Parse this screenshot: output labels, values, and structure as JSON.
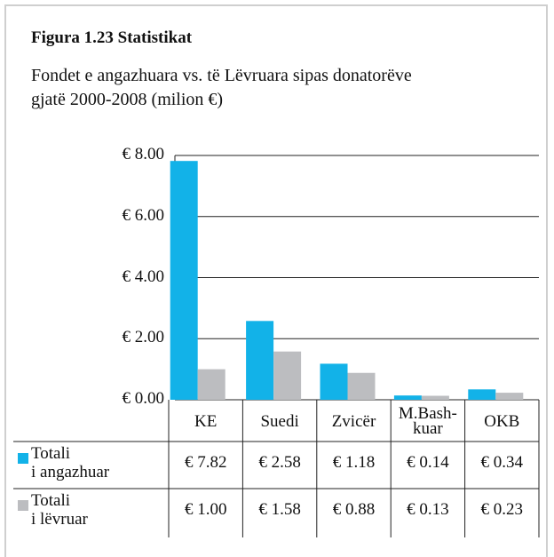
{
  "chart_data": {
    "type": "bar",
    "title": "Figura 1.23  Statistikat",
    "subtitle": "Fondet e angazhuara vs. të Lëvruara sipas donatorëve\ngjatë 2000-2008 (milion €)",
    "categories": [
      "KE",
      "Suedi",
      "Zvicër",
      "M.Bash-\nkuar",
      "OKB"
    ],
    "series": [
      {
        "name": "Totali\ni angazhuar",
        "color": "#12b2e8",
        "values": [
          7.82,
          2.58,
          1.18,
          0.14,
          0.34
        ],
        "value_labels": [
          "€ 7.82",
          "€ 2.58",
          "€ 1.18",
          "€ 0.14",
          "€ 0.34"
        ]
      },
      {
        "name": "Totali\ni lëvruar",
        "color": "#bcbdc0",
        "values": [
          1.0,
          1.58,
          0.88,
          0.13,
          0.23
        ],
        "value_labels": [
          "€ 1.00",
          "€ 1.58",
          "€ 0.88",
          "€ 0.13",
          "€ 0.23"
        ]
      }
    ],
    "ylim": [
      0,
      8
    ],
    "yticks": [
      {
        "value": 0,
        "label": "€ 0.00"
      },
      {
        "value": 2,
        "label": "€ 2.00"
      },
      {
        "value": 4,
        "label": "€ 4.00"
      },
      {
        "value": 6,
        "label": "€ 6.00"
      },
      {
        "value": 8,
        "label": "€ 8.00"
      }
    ],
    "grid": true
  }
}
